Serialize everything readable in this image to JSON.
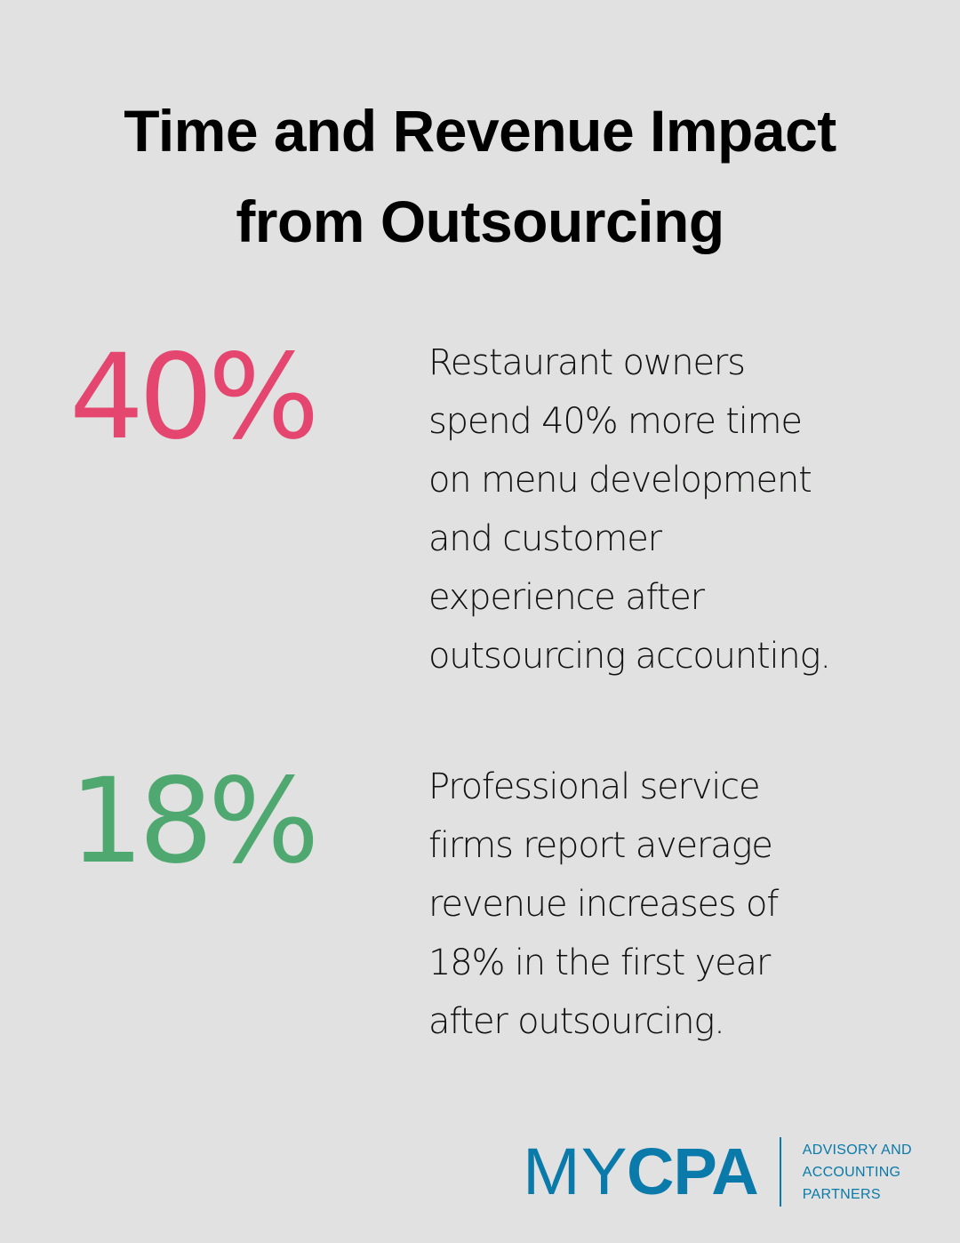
{
  "title": {
    "line1": "Time and Revenue Impact",
    "line2": "from Outsourcing"
  },
  "stats": [
    {
      "value": "40%",
      "color": "#e4466f",
      "description": "Restaurant owners\nspend 40% more time\non menu development\nand customer\nexperience after\noutsourcing accounting."
    },
    {
      "value": "18%",
      "color": "#4ea86f",
      "description": "Professional service\nfirms report average\nrevenue increases of\n18% in the first year\nafter outsourcing."
    }
  ],
  "logo": {
    "brand_light": "MY",
    "brand_bold": "CPA",
    "brand_color": "#0a7aaa",
    "tagline": [
      "ADVISORY AND",
      "ACCOUNTING",
      "PARTNERS"
    ]
  },
  "colors": {
    "background": "#e0e1e0",
    "text": "#000000"
  }
}
